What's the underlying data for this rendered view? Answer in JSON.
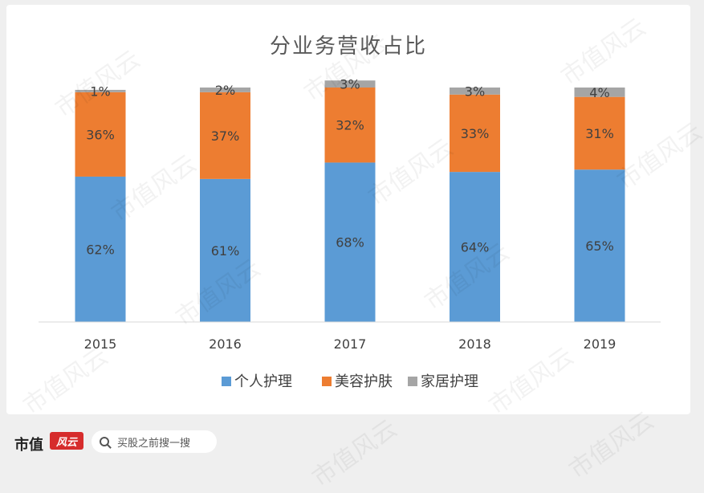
{
  "chart_data": {
    "type": "bar",
    "stacked": true,
    "title": "分业务营收占比",
    "categories": [
      "2015",
      "2016",
      "2017",
      "2018",
      "2019"
    ],
    "series": [
      {
        "name": "个人护理",
        "color": "#5b9bd5",
        "values": [
          62,
          61,
          68,
          64,
          65
        ]
      },
      {
        "name": "美容护肤",
        "color": "#ed7d31",
        "values": [
          36,
          37,
          32,
          33,
          31
        ]
      },
      {
        "name": "家居护理",
        "color": "#a5a5a5",
        "values": [
          1,
          2,
          3,
          3,
          4
        ]
      }
    ],
    "value_suffix": "%",
    "ylim": [
      0,
      100
    ],
    "grid": false,
    "legend_position": "bottom"
  },
  "footer": {
    "brand": "市值",
    "logo_text": "风云",
    "search_placeholder": "买股之前搜一搜"
  },
  "watermark_text": "市值风云"
}
